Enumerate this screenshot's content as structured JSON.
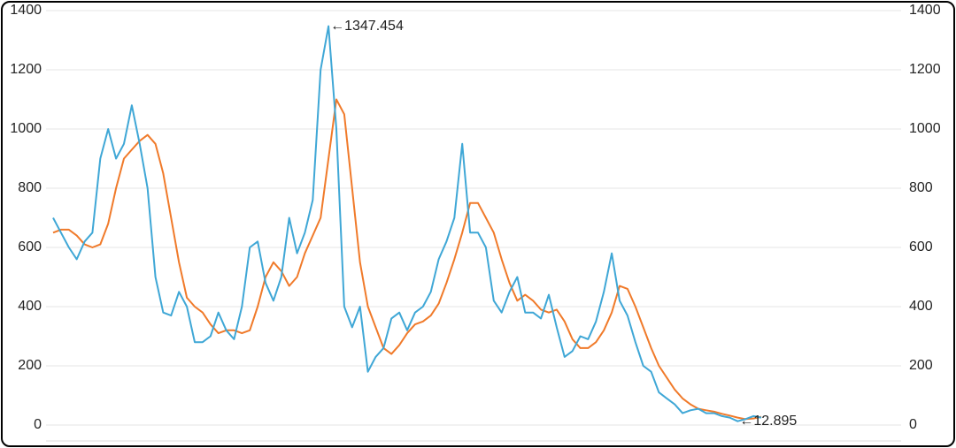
{
  "chart_data": {
    "type": "line",
    "series": [
      {
        "color": "#f07a2a",
        "values": [
          650,
          660,
          660,
          640,
          610,
          600,
          610,
          680,
          800,
          900,
          930,
          960,
          980,
          950,
          850,
          700,
          550,
          430,
          400,
          380,
          340,
          310,
          320,
          320,
          310,
          320,
          400,
          500,
          550,
          520,
          470,
          500,
          580,
          640,
          700,
          900,
          1100,
          1050,
          800,
          550,
          400,
          330,
          260,
          240,
          270,
          310,
          340,
          350,
          370,
          410,
          480,
          560,
          650,
          750,
          750,
          700,
          650,
          560,
          480,
          420,
          440,
          420,
          390,
          380,
          390,
          350,
          290,
          260,
          260,
          280,
          320,
          380,
          470,
          460,
          400,
          330,
          260,
          200,
          160,
          120,
          90,
          70,
          55,
          50,
          45,
          38,
          32,
          25,
          20,
          22,
          28
        ]
      },
      {
        "color": "#3fa7d6",
        "values": [
          700,
          650,
          600,
          560,
          620,
          650,
          900,
          1000,
          900,
          950,
          1080,
          950,
          800,
          500,
          380,
          370,
          450,
          400,
          280,
          280,
          300,
          380,
          320,
          290,
          400,
          600,
          620,
          480,
          420,
          500,
          700,
          580,
          650,
          760,
          1200,
          1347.454,
          1000,
          400,
          330,
          400,
          180,
          230,
          260,
          360,
          380,
          320,
          380,
          400,
          450,
          560,
          620,
          700,
          950,
          650,
          650,
          600,
          420,
          380,
          450,
          500,
          380,
          380,
          360,
          440,
          330,
          230,
          250,
          300,
          290,
          350,
          450,
          580,
          420,
          370,
          280,
          200,
          180,
          110,
          90,
          70,
          40,
          50,
          55,
          40,
          40,
          30,
          25,
          12.895,
          20,
          30,
          25
        ]
      }
    ],
    "annotations": [
      {
        "label": "←1347.454",
        "value": 1347.454
      },
      {
        "label": "←12.895",
        "value": 12.895
      }
    ],
    "ylim": [
      0,
      1400
    ],
    "yticks": [
      0,
      200,
      400,
      600,
      800,
      1000,
      1200,
      1400
    ],
    "y2lim": [
      0,
      1400
    ],
    "y2ticks": [
      0,
      200,
      400,
      600,
      800,
      1000,
      1200,
      1400
    ],
    "grid": true
  }
}
